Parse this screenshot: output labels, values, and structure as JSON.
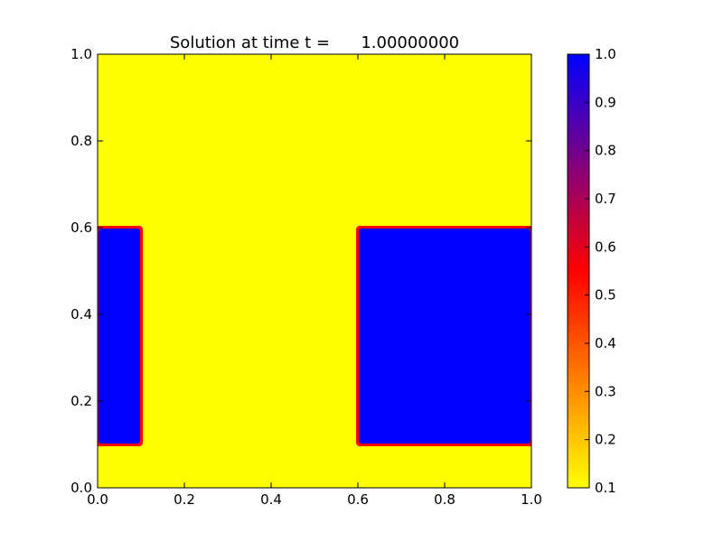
{
  "chart_data": {
    "type": "heatmap",
    "title": "Solution at time t =      1.00000000",
    "xlabel": "",
    "ylabel": "",
    "xlim": [
      0.0,
      1.0
    ],
    "ylim": [
      0.0,
      1.0
    ],
    "x_ticks": [
      "0.0",
      "0.2",
      "0.4",
      "0.6",
      "0.8",
      "1.0"
    ],
    "y_ticks": [
      "0.0",
      "0.2",
      "0.4",
      "0.6",
      "0.8",
      "1.0"
    ],
    "background_value": 0.1,
    "regions": [
      {
        "x": [
          0.0,
          0.1
        ],
        "y": [
          0.1,
          0.6
        ],
        "value": 1.0
      },
      {
        "x": [
          0.6,
          1.0
        ],
        "y": [
          0.1,
          0.6
        ],
        "value": 1.0
      }
    ],
    "colorbar": {
      "range": [
        0.1,
        1.0
      ],
      "ticks": [
        "0.1",
        "0.2",
        "0.3",
        "0.4",
        "0.5",
        "0.6",
        "0.7",
        "0.8",
        "0.9",
        "1.0"
      ],
      "colors": {
        "low": "#ffff00",
        "mid": "#ff0000",
        "high": "#0000ff"
      }
    },
    "grid": false
  }
}
